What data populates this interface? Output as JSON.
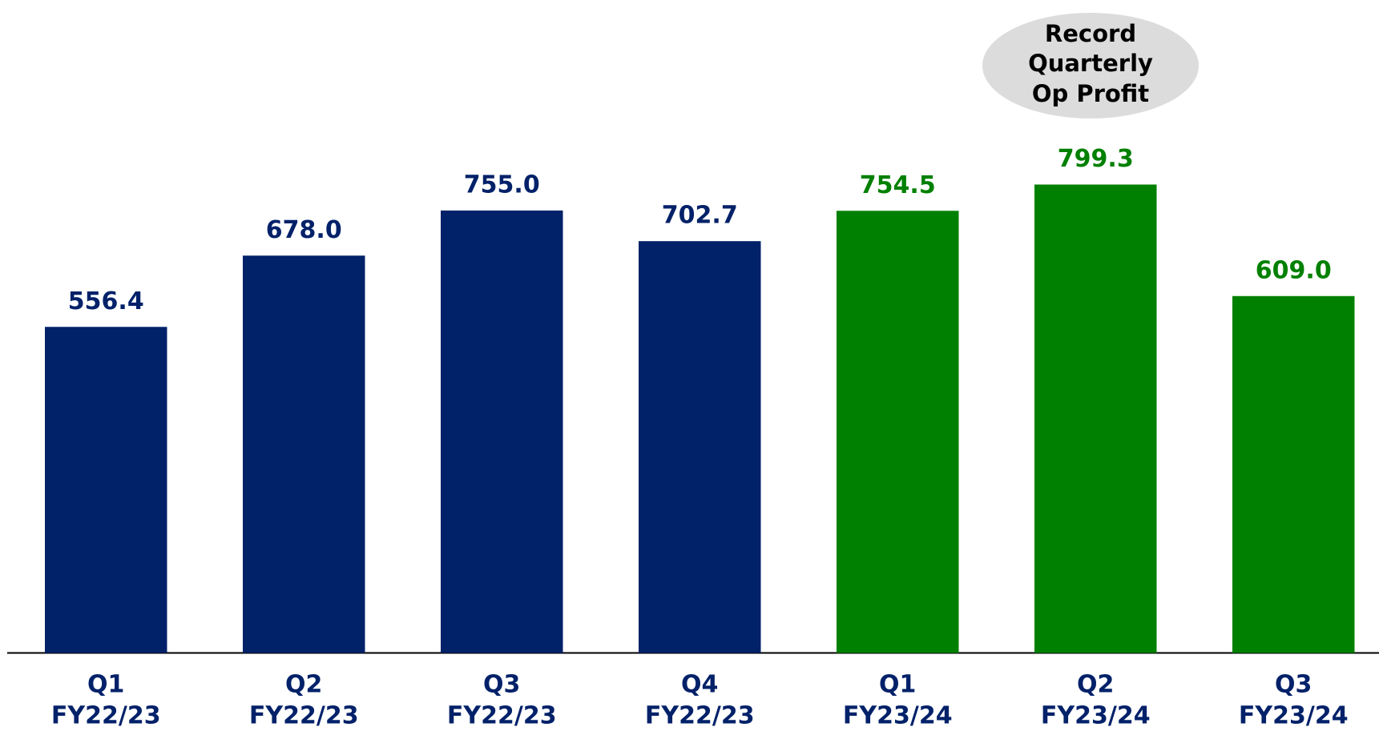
{
  "chart_data": {
    "type": "bar",
    "categories": [
      [
        "Q1",
        "FY22/23"
      ],
      [
        "Q2",
        "FY22/23"
      ],
      [
        "Q3",
        "FY22/23"
      ],
      [
        "Q4",
        "FY22/23"
      ],
      [
        "Q1",
        "FY23/24"
      ],
      [
        "Q2",
        "FY23/24"
      ],
      [
        "Q3",
        "FY23/24"
      ]
    ],
    "values": [
      556.4,
      678.0,
      755.0,
      702.7,
      754.5,
      799.3,
      609.0
    ],
    "value_labels": [
      "556.4",
      "678.0",
      "755.0",
      "702.7",
      "754.5",
      "799.3",
      "609.0"
    ],
    "colors": [
      "#012169",
      "#012169",
      "#012169",
      "#012169",
      "#008000",
      "#008000",
      "#008000"
    ],
    "annotation": [
      "Record",
      "Quarterly",
      "Op Profit"
    ]
  }
}
